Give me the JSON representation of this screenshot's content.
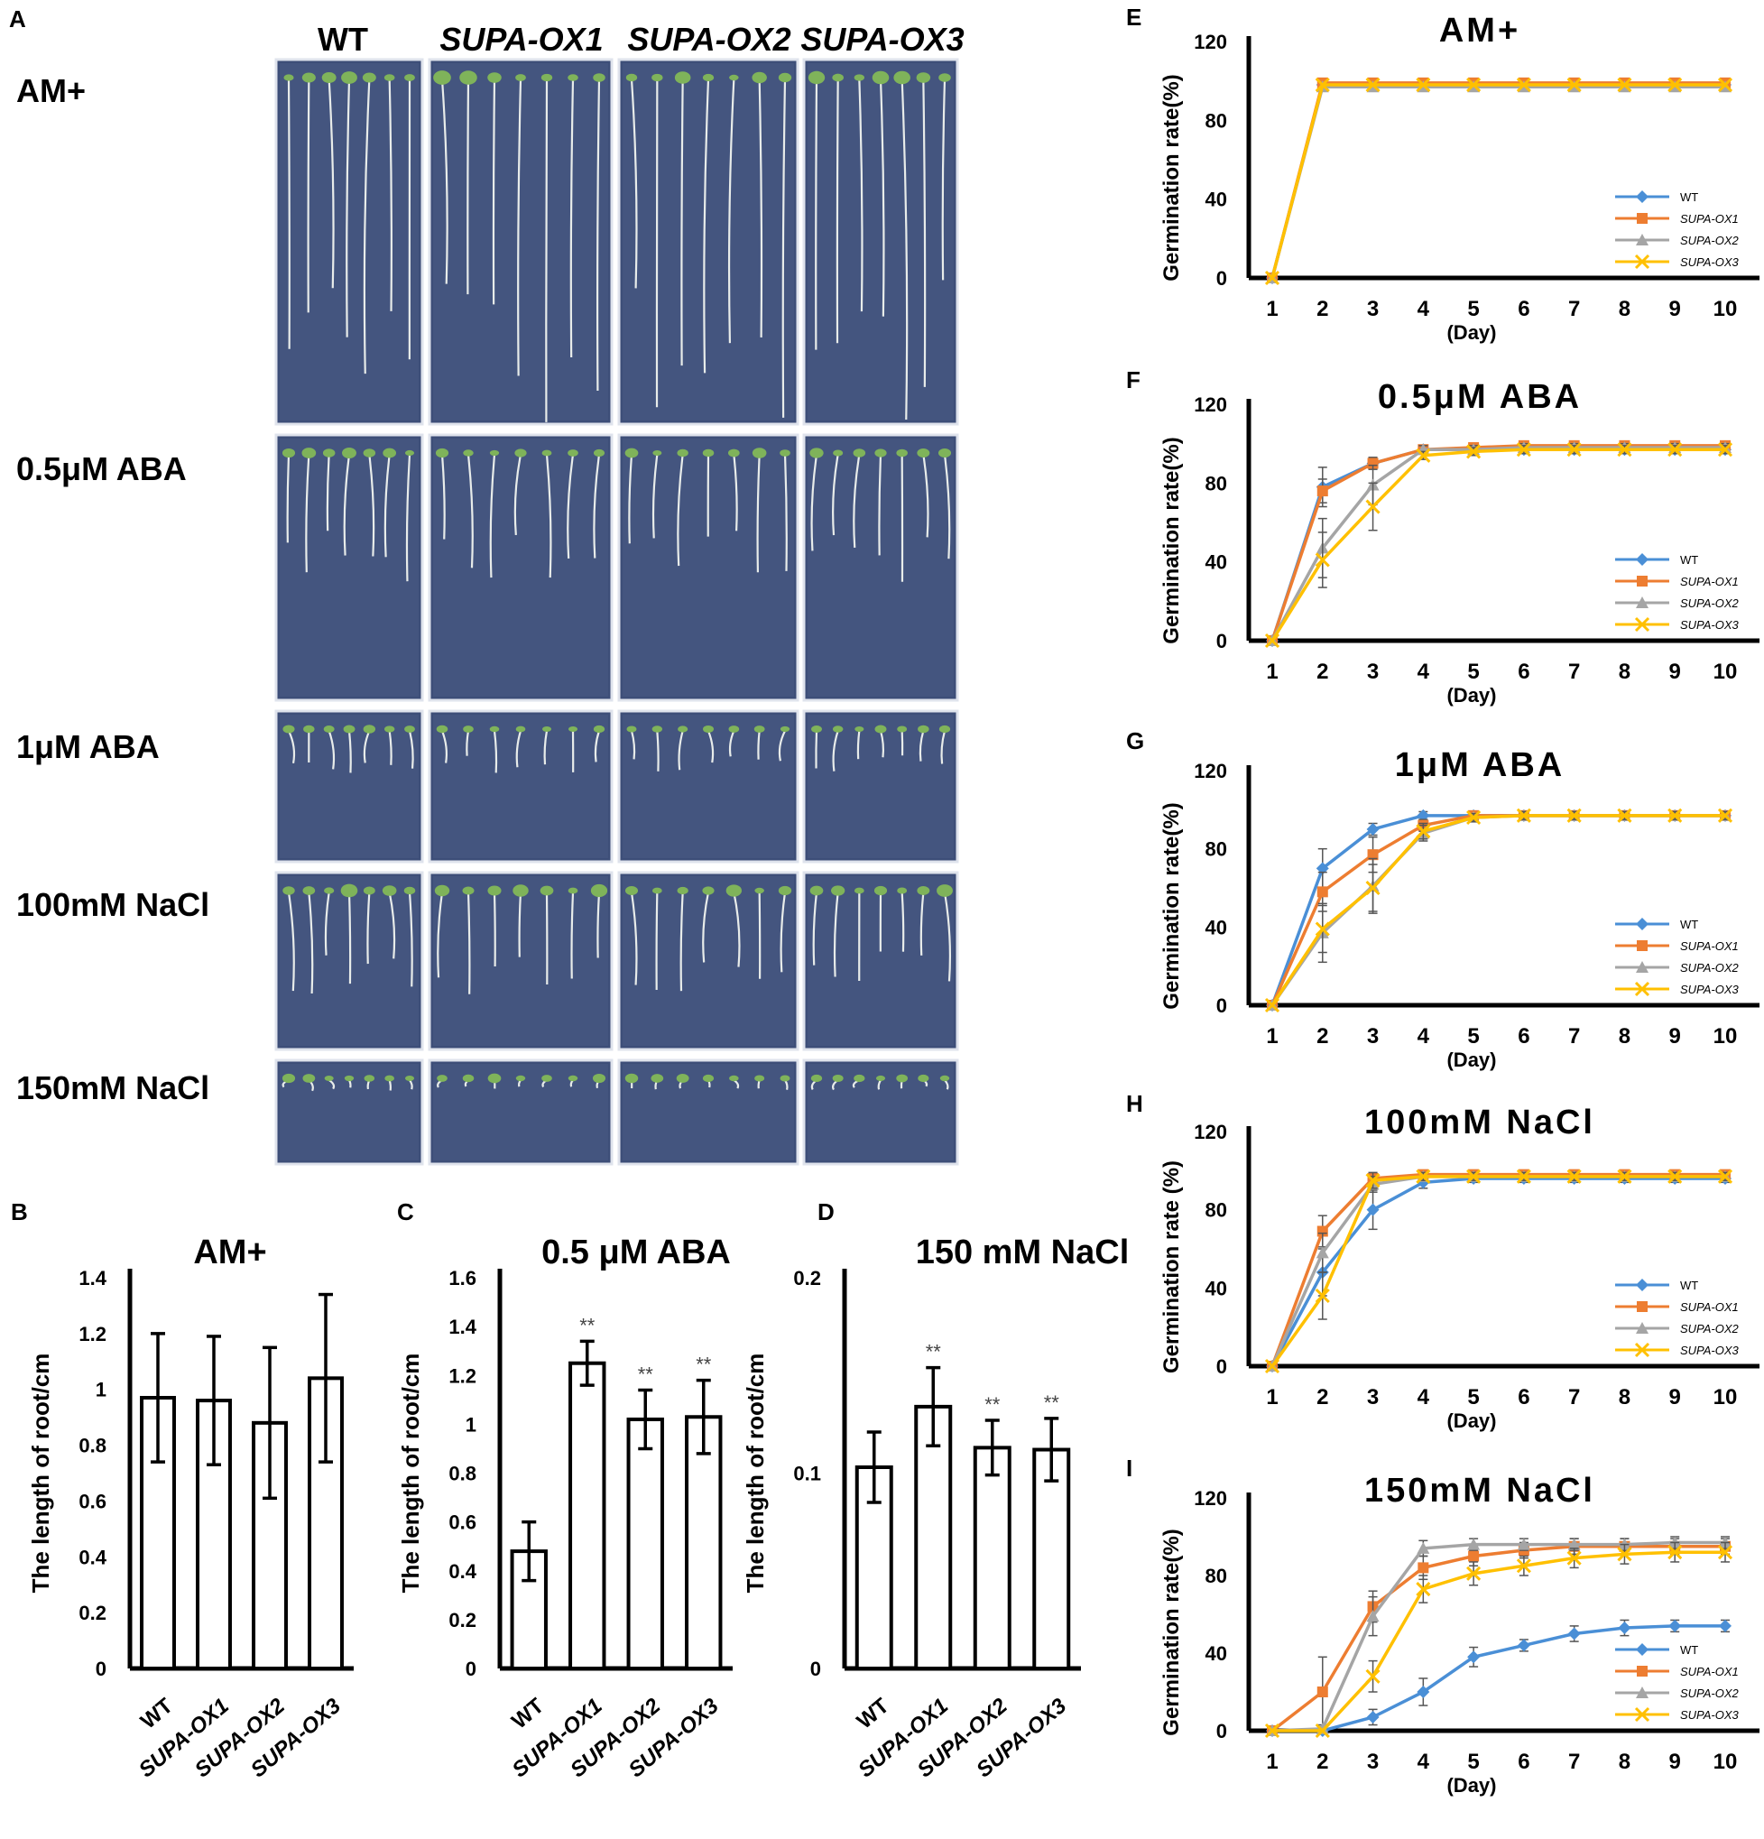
{
  "panelA": {
    "letter": "A",
    "columns": [
      "WT",
      "SUPA-OX1",
      "SUPA-OX2",
      "SUPA-OX3"
    ],
    "rows": [
      {
        "label": "AM+",
        "growth": 1.0,
        "leaves": 1.0
      },
      {
        "label": "0.5μM ABA",
        "growth": 0.55,
        "leaves": 0.6
      },
      {
        "label": "1μM ABA",
        "growth": 0.35,
        "leaves": 0.35
      },
      {
        "label": "100mM NaCl",
        "growth": 0.7,
        "leaves": 0.9
      },
      {
        "label": "150mM NaCl",
        "growth": 0.15,
        "leaves": 0.5
      }
    ]
  },
  "chart_data": [
    {
      "id": "B",
      "type": "bar",
      "title": "AM+",
      "ylabel": "The length of root/cm",
      "categories": [
        "WT",
        "SUPA-OX1",
        "SUPA-OX2",
        "SUPA-OX3"
      ],
      "values": [
        0.97,
        0.96,
        0.88,
        1.04
      ],
      "errors": [
        0.23,
        0.23,
        0.27,
        0.3
      ],
      "significance": [
        "",
        "",
        "",
        ""
      ],
      "ylim": [
        0,
        1.4
      ],
      "yticks": [
        0,
        0.2,
        0.4,
        0.6,
        0.8,
        1,
        1.2,
        1.4
      ],
      "ytick_labels": [
        "0",
        "0.2",
        "0.4",
        "0.6",
        "0.8",
        "1",
        "1.2",
        "1.4"
      ]
    },
    {
      "id": "C",
      "type": "bar",
      "title": "0.5 μM ABA",
      "ylabel": "The length of root/cm",
      "categories": [
        "WT",
        "SUPA-OX1",
        "SUPA-OX2",
        "SUPA-OX3"
      ],
      "values": [
        0.48,
        1.25,
        1.02,
        1.03
      ],
      "errors": [
        0.12,
        0.09,
        0.12,
        0.15
      ],
      "significance": [
        "",
        "**",
        "**",
        "**"
      ],
      "ylim": [
        0,
        1.6
      ],
      "yticks": [
        0,
        0.2,
        0.4,
        0.6,
        0.8,
        1,
        1.2,
        1.4,
        1.6
      ],
      "ytick_labels": [
        "0",
        "0.2",
        "0.4",
        "0.6",
        "0.8",
        "1",
        "1.2",
        "1.4",
        "1.6"
      ]
    },
    {
      "id": "D",
      "type": "bar",
      "title": "150 mM NaCl",
      "ylabel": "The length of root/cm",
      "categories": [
        "WT",
        "SUPA-OX1",
        "SUPA-OX2",
        "SUPA-OX3"
      ],
      "values": [
        0.103,
        0.134,
        0.113,
        0.112
      ],
      "errors": [
        0.018,
        0.02,
        0.014,
        0.016
      ],
      "significance": [
        "",
        "**",
        "**",
        "**"
      ],
      "ylim": [
        0,
        0.2
      ],
      "yticks": [
        0,
        0.1,
        0.2
      ],
      "ytick_labels": [
        "0",
        "0.1",
        "0.2"
      ]
    },
    {
      "id": "E",
      "type": "line",
      "title": "AM+",
      "ylabel": "Germination rate(%)",
      "xlabel": "(Day)",
      "x": [
        1,
        2,
        3,
        4,
        5,
        6,
        7,
        8,
        9,
        10
      ],
      "ylim": [
        0,
        120
      ],
      "yticks": [
        0,
        40,
        80,
        120
      ],
      "series": [
        {
          "name": "WT",
          "color": "#4a8fd6",
          "marker": "diamond",
          "values": [
            0,
            98,
            98,
            98,
            98,
            98,
            98,
            98,
            98,
            98
          ],
          "errors": [
            0,
            0,
            0,
            0,
            0,
            0,
            0,
            0,
            0,
            0
          ]
        },
        {
          "name": "SUPA-OX1",
          "color": "#ed7d31",
          "marker": "square",
          "values": [
            0,
            99,
            99,
            99,
            99,
            99,
            99,
            99,
            99,
            99
          ],
          "errors": [
            0,
            0,
            0,
            0,
            0,
            0,
            0,
            0,
            0,
            0
          ]
        },
        {
          "name": "SUPA-OX2",
          "color": "#a5a5a5",
          "marker": "triangle",
          "values": [
            0,
            97,
            97,
            97,
            97,
            97,
            97,
            97,
            97,
            97
          ],
          "errors": [
            0,
            0,
            0,
            0,
            0,
            0,
            0,
            0,
            0,
            0
          ]
        },
        {
          "name": "SUPA-OX3",
          "color": "#ffc000",
          "marker": "x",
          "values": [
            0,
            98,
            98,
            98,
            98,
            98,
            98,
            98,
            98,
            98
          ],
          "errors": [
            0,
            0,
            0,
            0,
            0,
            0,
            0,
            0,
            0,
            0
          ]
        }
      ]
    },
    {
      "id": "F",
      "type": "line",
      "title": "0.5μM ABA",
      "ylabel": "Germination rate(%)",
      "xlabel": "(Day)",
      "x": [
        1,
        2,
        3,
        4,
        5,
        6,
        7,
        8,
        9,
        10
      ],
      "ylim": [
        0,
        120
      ],
      "yticks": [
        0,
        40,
        80,
        120
      ],
      "series": [
        {
          "name": "WT",
          "color": "#4a8fd6",
          "marker": "diamond",
          "values": [
            0,
            78,
            90,
            97,
            97,
            97,
            97,
            97,
            97,
            97
          ],
          "errors": [
            0,
            10,
            3,
            2,
            2,
            2,
            2,
            2,
            2,
            2
          ]
        },
        {
          "name": "SUPA-OX1",
          "color": "#ed7d31",
          "marker": "square",
          "values": [
            0,
            76,
            90,
            97,
            98,
            99,
            99,
            99,
            99,
            99
          ],
          "errors": [
            0,
            6,
            3,
            2,
            2,
            2,
            2,
            2,
            2,
            2
          ]
        },
        {
          "name": "SUPA-OX2",
          "color": "#a5a5a5",
          "marker": "triangle",
          "values": [
            0,
            47,
            79,
            97,
            97,
            98,
            98,
            98,
            98,
            98
          ],
          "errors": [
            0,
            15,
            10,
            2,
            2,
            2,
            2,
            2,
            2,
            2
          ]
        },
        {
          "name": "SUPA-OX3",
          "color": "#ffc000",
          "marker": "x",
          "values": [
            0,
            41,
            68,
            94,
            96,
            97,
            97,
            97,
            97,
            97
          ],
          "errors": [
            0,
            14,
            12,
            2,
            2,
            2,
            2,
            2,
            2,
            2
          ]
        }
      ]
    },
    {
      "id": "G",
      "type": "line",
      "title": "1μM ABA",
      "ylabel": "Germination rate(%)",
      "xlabel": "(Day)",
      "x": [
        1,
        2,
        3,
        4,
        5,
        6,
        7,
        8,
        9,
        10
      ],
      "ylim": [
        0,
        120
      ],
      "yticks": [
        0,
        40,
        80,
        120
      ],
      "series": [
        {
          "name": "WT",
          "color": "#4a8fd6",
          "marker": "diamond",
          "values": [
            0,
            70,
            90,
            97,
            97,
            97,
            97,
            97,
            97,
            97
          ],
          "errors": [
            0,
            10,
            3,
            2,
            2,
            2,
            2,
            2,
            2,
            2
          ]
        },
        {
          "name": "SUPA-OX1",
          "color": "#ed7d31",
          "marker": "square",
          "values": [
            0,
            58,
            77,
            92,
            97,
            97,
            97,
            97,
            97,
            97
          ],
          "errors": [
            0,
            10,
            9,
            3,
            2,
            2,
            2,
            2,
            2,
            2
          ]
        },
        {
          "name": "SUPA-OX2",
          "color": "#a5a5a5",
          "marker": "triangle",
          "values": [
            0,
            37,
            61,
            88,
            96,
            97,
            97,
            97,
            97,
            97
          ],
          "errors": [
            0,
            15,
            14,
            4,
            2,
            2,
            2,
            2,
            2,
            2
          ]
        },
        {
          "name": "SUPA-OX3",
          "color": "#ffc000",
          "marker": "x",
          "values": [
            0,
            39,
            60,
            89,
            96,
            97,
            97,
            97,
            97,
            97
          ],
          "errors": [
            0,
            12,
            12,
            4,
            2,
            2,
            2,
            2,
            2,
            2
          ]
        }
      ]
    },
    {
      "id": "H",
      "type": "line",
      "title": "100mM NaCl",
      "ylabel": "Germination rate (%)",
      "xlabel": "(Day)",
      "x": [
        1,
        2,
        3,
        4,
        5,
        6,
        7,
        8,
        9,
        10
      ],
      "ylim": [
        0,
        120
      ],
      "yticks": [
        0,
        40,
        80,
        120
      ],
      "series": [
        {
          "name": "WT",
          "color": "#4a8fd6",
          "marker": "diamond",
          "values": [
            0,
            48,
            80,
            94,
            96,
            96,
            96,
            96,
            96,
            96
          ],
          "errors": [
            0,
            12,
            10,
            3,
            2,
            2,
            2,
            2,
            2,
            2
          ]
        },
        {
          "name": "SUPA-OX1",
          "color": "#ed7d31",
          "marker": "square",
          "values": [
            0,
            69,
            96,
            98,
            98,
            98,
            98,
            98,
            98,
            98
          ],
          "errors": [
            0,
            8,
            3,
            2,
            2,
            2,
            2,
            2,
            2,
            2
          ]
        },
        {
          "name": "SUPA-OX2",
          "color": "#a5a5a5",
          "marker": "triangle",
          "values": [
            0,
            58,
            93,
            97,
            97,
            97,
            97,
            97,
            97,
            97
          ],
          "errors": [
            0,
            10,
            4,
            2,
            2,
            2,
            2,
            2,
            2,
            2
          ]
        },
        {
          "name": "SUPA-OX3",
          "color": "#ffc000",
          "marker": "x",
          "values": [
            0,
            36,
            95,
            97,
            97,
            97,
            97,
            97,
            97,
            97
          ],
          "errors": [
            0,
            12,
            4,
            2,
            2,
            2,
            2,
            2,
            2,
            2
          ]
        }
      ]
    },
    {
      "id": "I",
      "type": "line",
      "title": "150mM NaCl",
      "ylabel": "Germination rate(%)",
      "xlabel": "(Day)",
      "x": [
        1,
        2,
        3,
        4,
        5,
        6,
        7,
        8,
        9,
        10
      ],
      "ylim": [
        0,
        120
      ],
      "yticks": [
        0,
        40,
        80,
        120
      ],
      "series": [
        {
          "name": "WT",
          "color": "#4a8fd6",
          "marker": "diamond",
          "values": [
            0,
            0,
            7,
            20,
            38,
            44,
            50,
            53,
            54,
            54
          ],
          "errors": [
            0,
            0,
            4,
            7,
            5,
            3,
            4,
            4,
            3,
            3
          ]
        },
        {
          "name": "SUPA-OX1",
          "color": "#ed7d31",
          "marker": "square",
          "values": [
            0,
            20,
            64,
            84,
            90,
            93,
            95,
            95,
            95,
            95
          ],
          "errors": [
            0,
            18,
            8,
            6,
            5,
            4,
            4,
            4,
            4,
            4
          ]
        },
        {
          "name": "SUPA-OX2",
          "color": "#a5a5a5",
          "marker": "triangle",
          "values": [
            0,
            1,
            59,
            94,
            96,
            96,
            96,
            96,
            97,
            97
          ],
          "errors": [
            0,
            2,
            10,
            4,
            3,
            3,
            3,
            3,
            3,
            3
          ]
        },
        {
          "name": "SUPA-OX3",
          "color": "#ffc000",
          "marker": "x",
          "values": [
            0,
            0,
            28,
            73,
            81,
            85,
            89,
            91,
            92,
            92
          ],
          "errors": [
            0,
            0,
            8,
            7,
            6,
            5,
            5,
            5,
            5,
            5
          ]
        }
      ]
    }
  ]
}
